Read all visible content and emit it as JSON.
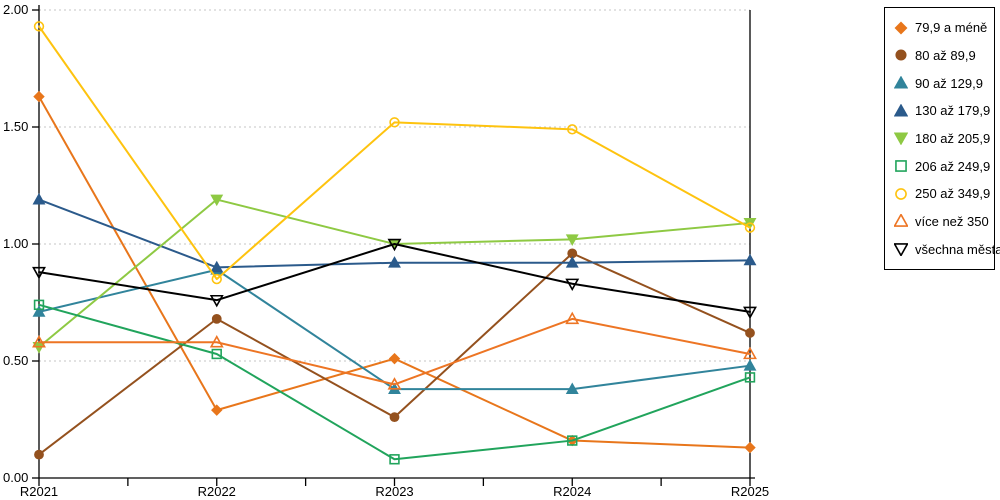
{
  "chart_data": {
    "type": "line",
    "title": "",
    "xlabel": "",
    "ylabel": "",
    "categories": [
      "R2021",
      "R2022",
      "R2023",
      "R2024",
      "R2025"
    ],
    "y_ticks": [
      {
        "value": 0.0,
        "label": "0.00"
      },
      {
        "value": 0.5,
        "label": "0.50"
      },
      {
        "value": 1.0,
        "label": "1.00"
      },
      {
        "value": 1.5,
        "label": "1.50"
      },
      {
        "value": 2.0,
        "label": "2.00"
      }
    ],
    "ylim": [
      0,
      2
    ],
    "grid": "horizontal-dashed",
    "grid_color": "#c6c6c6",
    "axis_color": "#000000",
    "legend_position": "right",
    "series": [
      {
        "name": "79,9 a méně",
        "marker": "diamond-filled",
        "color": "#e8761b",
        "values": [
          1.63,
          0.29,
          0.51,
          0.16,
          0.13
        ]
      },
      {
        "name": "80 až 89,9",
        "marker": "circle-filled",
        "color": "#94511e",
        "values": [
          0.1,
          0.68,
          0.26,
          0.96,
          0.62
        ]
      },
      {
        "name": "90 až 129,9",
        "marker": "triangle-up-filled",
        "color": "#31849b",
        "values": [
          0.71,
          0.89,
          0.38,
          0.38,
          0.48
        ]
      },
      {
        "name": "130 až 179,9",
        "marker": "triangle-up-filled",
        "color": "#2b5a8b",
        "values": [
          1.19,
          0.9,
          0.92,
          0.92,
          0.93
        ]
      },
      {
        "name": "180 až 205,9",
        "marker": "triangle-down-filled",
        "color": "#8ec943",
        "values": [
          0.56,
          1.19,
          1.0,
          1.02,
          1.09
        ]
      },
      {
        "name": "206 až 249,9",
        "marker": "square-open",
        "color": "#21a45c",
        "values": [
          0.74,
          0.53,
          0.08,
          0.16,
          0.43
        ]
      },
      {
        "name": "250 až 349,9",
        "marker": "circle-open",
        "color": "#fec30f",
        "values": [
          1.93,
          0.85,
          1.52,
          1.49,
          1.07
        ]
      },
      {
        "name": "více než 350",
        "marker": "triangle-up-open",
        "color": "#ed7524",
        "values": [
          0.58,
          0.58,
          0.4,
          0.68,
          0.53
        ]
      },
      {
        "name": "všechna města",
        "marker": "triangle-down-open",
        "color": "#000000",
        "values": [
          0.88,
          0.76,
          1.0,
          0.83,
          0.71
        ]
      }
    ]
  }
}
